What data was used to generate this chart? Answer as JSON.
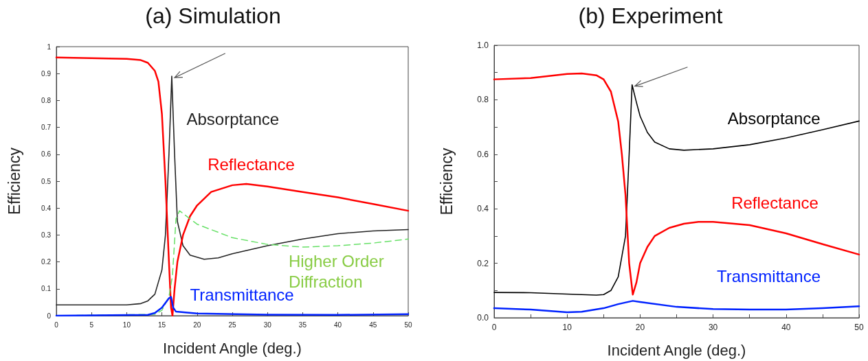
{
  "chart_data": [
    {
      "type": "line",
      "title": "(a) Simulation",
      "xlabel": "Incident Angle (deg.)",
      "ylabel": "Efficiency",
      "xlim": [
        0,
        50
      ],
      "xticks": [
        0,
        5,
        10,
        15,
        20,
        25,
        30,
        35,
        40,
        45,
        50
      ],
      "ylim": [
        0,
        1
      ],
      "yticks": [
        0,
        0.1,
        0.2,
        0.3,
        0.4,
        0.5,
        0.6,
        0.7,
        0.8,
        0.9,
        1
      ],
      "grid": false,
      "legend": false,
      "marker": "none",
      "series": [
        {
          "name": "Absorptance",
          "color": "#222222",
          "line_style": "solid",
          "x": [
            0,
            10,
            12,
            13,
            14,
            15,
            15.5,
            16,
            16.4,
            16.8,
            17.2,
            18,
            19,
            21,
            23,
            25,
            30,
            35,
            40,
            45,
            50
          ],
          "values": [
            0.04,
            0.04,
            0.045,
            0.055,
            0.08,
            0.17,
            0.3,
            0.6,
            0.89,
            0.6,
            0.35,
            0.26,
            0.225,
            0.21,
            0.215,
            0.23,
            0.26,
            0.285,
            0.305,
            0.315,
            0.32
          ]
        },
        {
          "name": "Reflectance",
          "color": "#ff0000",
          "line_style": "solid",
          "x": [
            0,
            10,
            12,
            13,
            14,
            14.5,
            15,
            15.5,
            16,
            16.3,
            16.5,
            16.8,
            17.2,
            18,
            19,
            20,
            22,
            25,
            27,
            30,
            35,
            40,
            45,
            50
          ],
          "values": [
            0.96,
            0.955,
            0.95,
            0.94,
            0.91,
            0.87,
            0.75,
            0.5,
            0.2,
            0.03,
            0,
            0.1,
            0.2,
            0.3,
            0.37,
            0.41,
            0.46,
            0.485,
            0.49,
            0.48,
            0.46,
            0.44,
            0.415,
            0.39
          ]
        },
        {
          "name": "Higher Order Diffraction",
          "color": "#66e066",
          "line_style": "dashed",
          "x": [
            0,
            14,
            15,
            16,
            16.5,
            17,
            17.5,
            18,
            20,
            25,
            30,
            35,
            40,
            45,
            50
          ],
          "values": [
            0,
            0.005,
            0.02,
            0.07,
            0.15,
            0.36,
            0.39,
            0.38,
            0.34,
            0.29,
            0.265,
            0.255,
            0.26,
            0.27,
            0.285
          ]
        },
        {
          "name": "Transmittance",
          "color": "#0022ff",
          "line_style": "solid",
          "x": [
            0,
            13,
            14,
            15,
            16,
            16.3,
            16.6,
            17,
            20,
            30,
            40,
            50
          ],
          "values": [
            0,
            0.003,
            0.01,
            0.03,
            0.065,
            0.07,
            0.03,
            0.015,
            0.008,
            0.004,
            0.003,
            0.006
          ]
        }
      ]
    },
    {
      "type": "line",
      "title": "(b) Experiment",
      "xlabel": "Incident Angle (deg.)",
      "ylabel": "Efficiency",
      "xlim": [
        0,
        50
      ],
      "xticks": [
        0,
        {
          "value": 5,
          "label": null
        },
        10,
        {
          "value": 15,
          "label": null
        },
        20,
        {
          "value": 25,
          "label": null
        },
        30,
        {
          "value": 35,
          "label": null
        },
        40,
        {
          "value": 45,
          "label": null
        },
        50
      ],
      "ylim": [
        0,
        1
      ],
      "yticks": [
        {
          "value": 0,
          "label": "0.0"
        },
        {
          "value": 0.1,
          "label": null
        },
        0.2,
        {
          "value": 0.3,
          "label": null
        },
        0.4,
        {
          "value": 0.5,
          "label": null
        },
        0.6,
        {
          "value": 0.7,
          "label": null
        },
        0.8,
        {
          "value": 0.9,
          "label": null
        },
        {
          "value": 1,
          "label": "1.0"
        }
      ],
      "grid": false,
      "legend": false,
      "marker": "none",
      "series": [
        {
          "name": "Absorptance",
          "color": "#000000",
          "line_style": "solid",
          "x": [
            0,
            5,
            10,
            14,
            15,
            16,
            17,
            18,
            18.5,
            18.9,
            19.5,
            20,
            21,
            22,
            24,
            26,
            30,
            35,
            40,
            45,
            50
          ],
          "values": [
            0.093,
            0.092,
            0.087,
            0.083,
            0.085,
            0.1,
            0.15,
            0.3,
            0.6,
            0.855,
            0.79,
            0.74,
            0.68,
            0.645,
            0.62,
            0.615,
            0.62,
            0.635,
            0.66,
            0.69,
            0.722
          ]
        },
        {
          "name": "Reflectance",
          "color": "#ff0000",
          "line_style": "solid",
          "x": [
            0,
            5,
            10,
            12,
            14,
            15,
            16,
            17,
            17.5,
            18,
            18.5,
            19,
            19.5,
            20,
            21,
            22,
            24,
            26,
            28,
            30,
            35,
            40,
            45,
            50
          ],
          "values": [
            0.875,
            0.88,
            0.895,
            0.897,
            0.89,
            0.875,
            0.83,
            0.72,
            0.6,
            0.45,
            0.2,
            0.085,
            0.13,
            0.2,
            0.26,
            0.3,
            0.33,
            0.345,
            0.352,
            0.352,
            0.34,
            0.31,
            0.27,
            0.232
          ]
        },
        {
          "name": "Transmittance",
          "color": "#0022ff",
          "line_style": "solid",
          "x": [
            0,
            5,
            10,
            12,
            15,
            17,
            19,
            20,
            25,
            30,
            35,
            40,
            45,
            50
          ],
          "values": [
            0.035,
            0.03,
            0.02,
            0.022,
            0.035,
            0.05,
            0.062,
            0.058,
            0.04,
            0.032,
            0.03,
            0.03,
            0.035,
            0.042
          ]
        }
      ]
    }
  ]
}
